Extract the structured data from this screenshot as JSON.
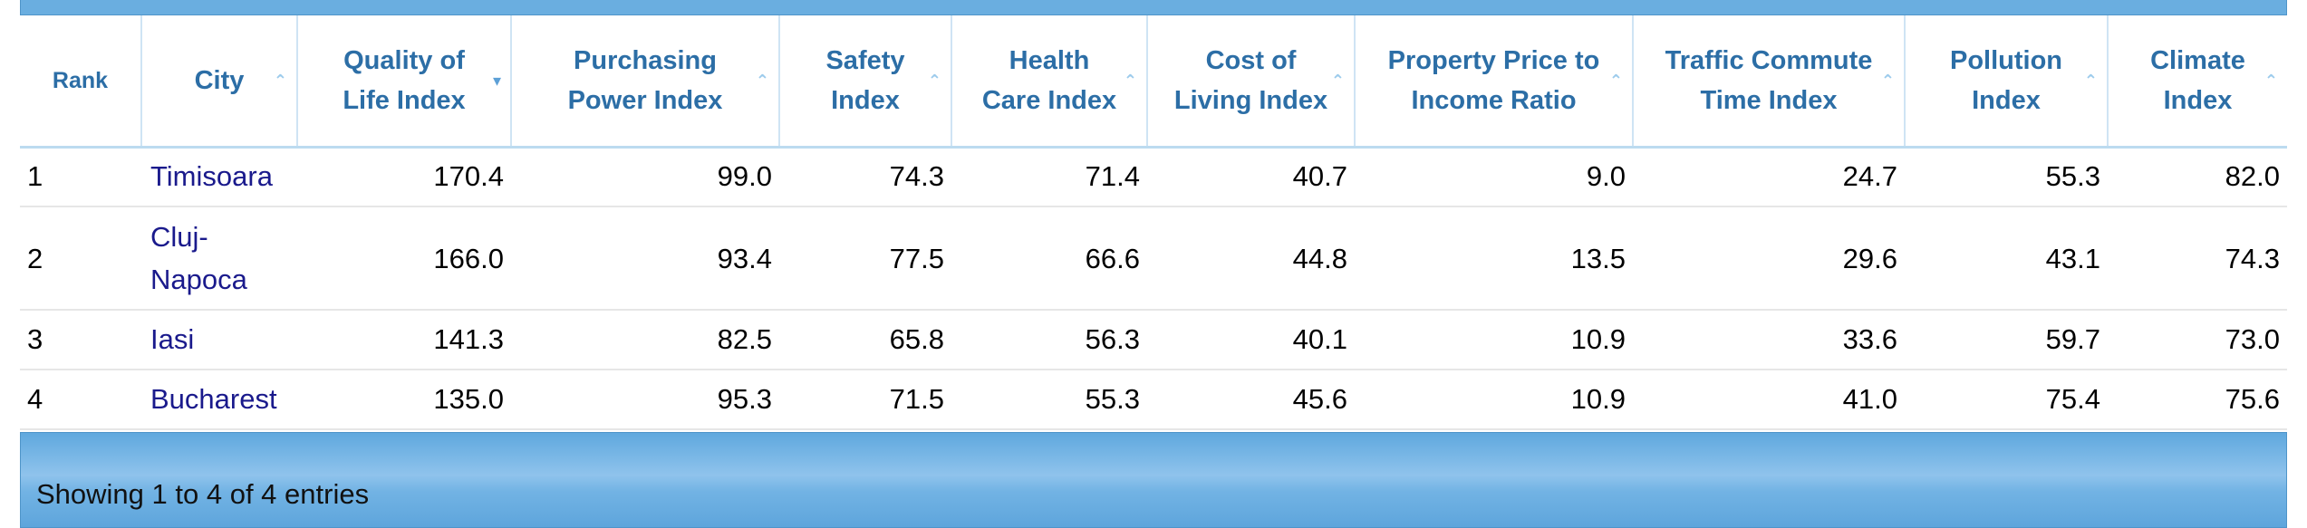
{
  "table": {
    "columns": [
      {
        "label": "Rank",
        "sort": "none"
      },
      {
        "label": "City",
        "sort": "up"
      },
      {
        "label": "Quality of Life Index",
        "sort": "down"
      },
      {
        "label": "Purchasing Power Index",
        "sort": "up"
      },
      {
        "label": "Safety Index",
        "sort": "up"
      },
      {
        "label": "Health Care Index",
        "sort": "up"
      },
      {
        "label": "Cost of Living Index",
        "sort": "up"
      },
      {
        "label": "Property Price to Income Ratio",
        "sort": "up"
      },
      {
        "label": "Traffic Commute Time Index",
        "sort": "up"
      },
      {
        "label": "Pollution Index",
        "sort": "up"
      },
      {
        "label": "Climate Index",
        "sort": "up"
      }
    ],
    "rows": [
      [
        "1",
        "Timisoara",
        "170.4",
        "99.0",
        "74.3",
        "71.4",
        "40.7",
        "9.0",
        "24.7",
        "55.3",
        "82.0"
      ],
      [
        "2",
        "Cluj-Napoca",
        "166.0",
        "93.4",
        "77.5",
        "66.6",
        "44.8",
        "13.5",
        "29.6",
        "43.1",
        "74.3"
      ],
      [
        "3",
        "Iasi",
        "141.3",
        "82.5",
        "65.8",
        "56.3",
        "40.1",
        "10.9",
        "33.6",
        "59.7",
        "73.0"
      ],
      [
        "4",
        "Bucharest",
        "135.0",
        "95.3",
        "71.5",
        "55.3",
        "45.6",
        "10.9",
        "41.0",
        "75.4",
        "75.6"
      ]
    ]
  },
  "footer": {
    "info": "Showing 1 to 4 of 4 entries"
  },
  "icons": {
    "sort_up": "chevron-up-icon",
    "sort_down": "chevron-down-icon"
  },
  "colors": {
    "header_text": "#2c6ea6",
    "link": "#1a1a8c",
    "bar": "#6aaee0"
  }
}
